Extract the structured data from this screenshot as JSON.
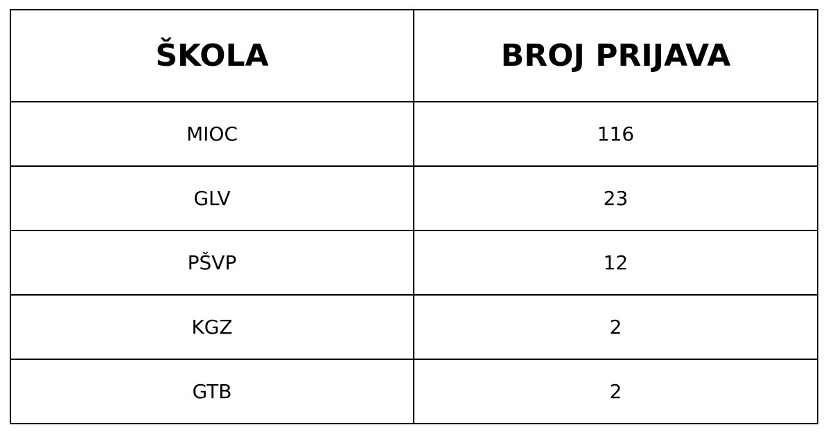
{
  "chart_data": {
    "type": "table",
    "columns": [
      "ŠKOLA",
      "BROJ PRIJAVA"
    ],
    "rows": [
      [
        "MIOC",
        "116"
      ],
      [
        "GLV",
        "23"
      ],
      [
        "PŠVP",
        "12"
      ],
      [
        "KGZ",
        "2"
      ],
      [
        "GTB",
        "2"
      ]
    ]
  }
}
